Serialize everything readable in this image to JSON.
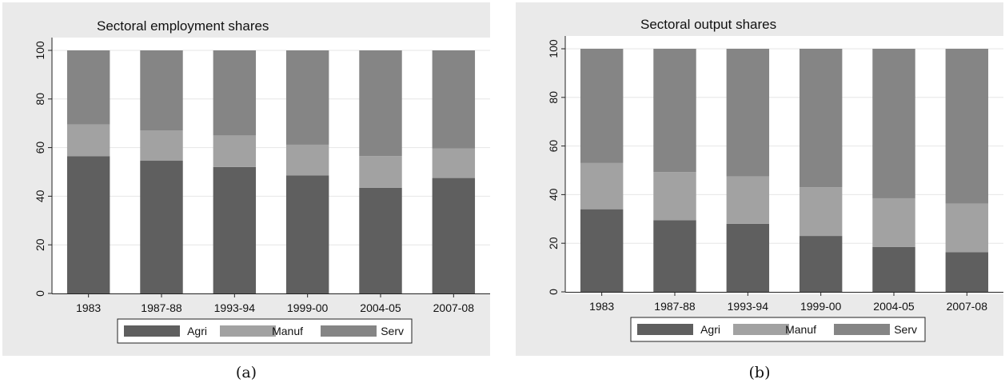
{
  "chart_data": [
    {
      "type": "bar",
      "stacked": true,
      "title": "Sectoral employment shares",
      "categories": [
        "1983",
        "1987-88",
        "1993-94",
        "1999-00",
        "2004-05",
        "2007-08"
      ],
      "series": [
        {
          "name": "Agri",
          "values": [
            56.5,
            54.6,
            52.0,
            48.6,
            43.5,
            47.5
          ],
          "color": "#5f5f5f"
        },
        {
          "name": "Manuf",
          "values": [
            13.0,
            12.5,
            13.0,
            12.6,
            13.0,
            12.2
          ],
          "color": "#a2a2a2"
        },
        {
          "name": "Serv",
          "values": [
            30.5,
            32.9,
            35.0,
            38.8,
            43.5,
            40.3
          ],
          "color": "#858585"
        }
      ],
      "ylim": [
        0,
        100
      ],
      "yticks": [
        0,
        20,
        40,
        60,
        80,
        100
      ],
      "grid": true,
      "legend": "bottom",
      "caption": "(a)"
    },
    {
      "type": "bar",
      "stacked": true,
      "title": "Sectoral output shares",
      "categories": [
        "1983",
        "1987-88",
        "1993-94",
        "1999-00",
        "2004-05",
        "2007-08"
      ],
      "series": [
        {
          "name": "Agri",
          "values": [
            34.0,
            29.5,
            28.0,
            23.0,
            18.5,
            16.3
          ],
          "color": "#5f5f5f"
        },
        {
          "name": "Manuf",
          "values": [
            19.0,
            19.8,
            19.5,
            20.0,
            20.0,
            20.0
          ],
          "color": "#a2a2a2"
        },
        {
          "name": "Serv",
          "values": [
            47.0,
            50.7,
            52.5,
            57.0,
            61.5,
            63.7
          ],
          "color": "#858585"
        }
      ],
      "ylim": [
        0,
        100
      ],
      "yticks": [
        0,
        20,
        40,
        60,
        80,
        100
      ],
      "grid": true,
      "legend": "bottom",
      "caption": "(b)"
    }
  ]
}
